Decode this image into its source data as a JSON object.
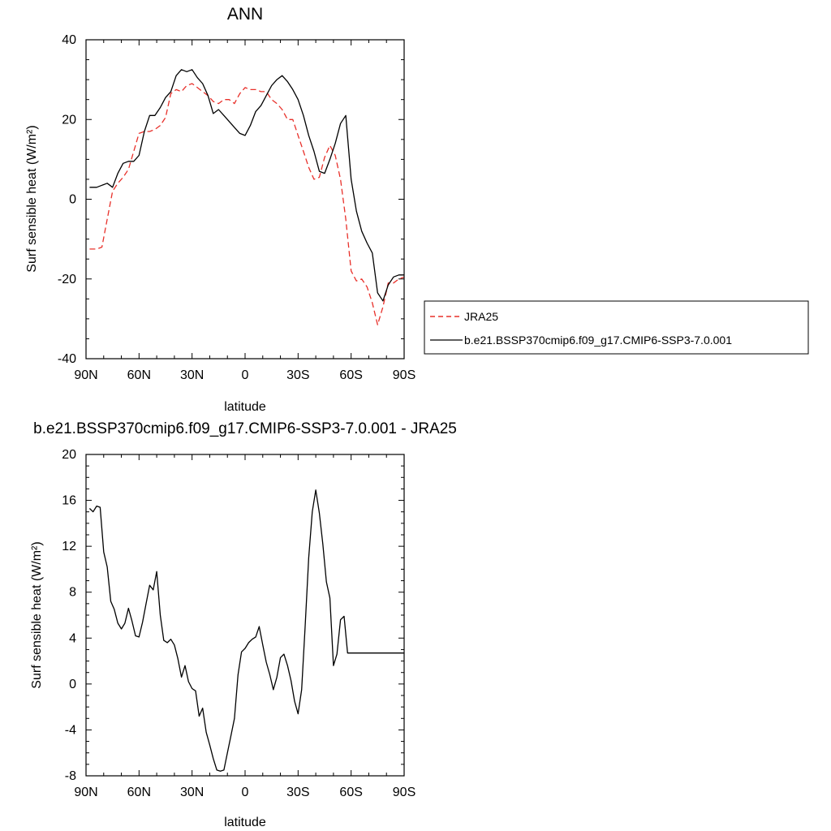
{
  "chart_data": [
    {
      "type": "line",
      "title": "ANN",
      "xlabel": "latitude",
      "ylabel": "Surf sensible heat (W/m²)",
      "xlim": [
        90,
        -90
      ],
      "ylim": [
        -40,
        40
      ],
      "x_ticks": [
        90,
        60,
        30,
        0,
        -30,
        -60,
        -90
      ],
      "x_tick_labels": [
        "90N",
        "60N",
        "30N",
        "0",
        "30S",
        "60S",
        "90S"
      ],
      "y_ticks": [
        -40,
        -20,
        0,
        20,
        40
      ],
      "y_tick_labels": [
        "-40",
        "-20",
        "0",
        "20",
        "40"
      ],
      "grid": false,
      "legend": "outside-right",
      "series": [
        {
          "name": "JRA25",
          "color": "#e8302a",
          "dash": "dashed",
          "x": [
            88,
            84,
            81,
            78,
            75,
            72,
            69,
            66,
            63,
            60,
            57,
            54,
            51,
            48,
            45,
            42,
            39,
            36,
            33,
            30,
            27,
            24,
            21,
            18,
            15,
            12,
            9,
            6,
            3,
            0,
            -3,
            -6,
            -9,
            -12,
            -15,
            -18,
            -21,
            -24,
            -27,
            -30,
            -33,
            -36,
            -39,
            -42,
            -45,
            -48,
            -51,
            -54,
            -57,
            -60,
            -63,
            -66,
            -69,
            -72,
            -75,
            -78,
            -81,
            -84,
            -87,
            -90
          ],
          "y": [
            -12.5,
            -12.5,
            -12.0,
            -5.0,
            2.0,
            4.0,
            5.5,
            7.5,
            12.0,
            16.5,
            17.0,
            17.0,
            17.5,
            18.5,
            20.5,
            26.5,
            27.5,
            27.0,
            28.5,
            29.0,
            28.0,
            27.0,
            26.0,
            24.5,
            24.0,
            25.0,
            25.0,
            24.0,
            26.5,
            28.0,
            27.5,
            27.5,
            27.0,
            27.0,
            25.0,
            24.0,
            22.5,
            20.0,
            20.0,
            16.0,
            12.0,
            8.0,
            5.0,
            5.5,
            10.5,
            13.5,
            11.0,
            5.0,
            -5.0,
            -18.0,
            -20.5,
            -20.0,
            -22.0,
            -26.0,
            -31.5,
            -27.0,
            -21.0,
            -21.0,
            -20.0,
            -19.5
          ]
        },
        {
          "name": "b.e21.BSSP370cmip6.f09_g17.CMIP6-SSP3-7.0.001",
          "color": "#000000",
          "dash": "solid",
          "x": [
            88,
            84,
            81,
            78,
            75,
            72,
            69,
            66,
            63,
            60,
            57,
            54,
            51,
            48,
            45,
            42,
            39,
            36,
            33,
            30,
            27,
            24,
            21,
            18,
            15,
            12,
            9,
            6,
            3,
            0,
            -3,
            -6,
            -9,
            -12,
            -15,
            -18,
            -21,
            -24,
            -27,
            -30,
            -33,
            -36,
            -39,
            -42,
            -45,
            -48,
            -51,
            -54,
            -57,
            -60,
            -63,
            -66,
            -69,
            -72,
            -75,
            -78,
            -81,
            -84,
            -87,
            -90
          ],
          "y": [
            3.0,
            3.0,
            3.5,
            4.0,
            3.0,
            6.5,
            9.0,
            9.5,
            9.5,
            11.0,
            17.0,
            21.0,
            21.0,
            23.0,
            25.5,
            27.0,
            31.0,
            32.5,
            32.0,
            32.5,
            30.5,
            29.0,
            26.0,
            21.5,
            22.5,
            21.0,
            19.5,
            18.0,
            16.5,
            16.0,
            18.5,
            22.0,
            23.5,
            26.0,
            28.5,
            30.0,
            31.0,
            29.5,
            27.5,
            25.0,
            21.0,
            16.0,
            12.0,
            7.0,
            6.5,
            10.0,
            14.0,
            19.0,
            21.0,
            5.0,
            -3.0,
            -8.0,
            -11.0,
            -13.5,
            -23.5,
            -25.5,
            -21.5,
            -19.5,
            -19.0,
            -19.0
          ]
        }
      ]
    },
    {
      "type": "line",
      "title": "b.e21.BSSP370cmip6.f09_g17.CMIP6-SSP3-7.0.001 - JRA25",
      "xlabel": "latitude",
      "ylabel": "Surf sensible heat (W/m²)",
      "xlim": [
        90,
        -90
      ],
      "ylim": [
        -8,
        20
      ],
      "x_ticks": [
        90,
        60,
        30,
        0,
        -30,
        -60,
        -90
      ],
      "x_tick_labels": [
        "90N",
        "60N",
        "30N",
        "0",
        "30S",
        "60S",
        "90S"
      ],
      "y_ticks": [
        -8,
        -4,
        0,
        4,
        8,
        12,
        16,
        20
      ],
      "y_tick_labels": [
        "-8",
        "-4",
        "0",
        "4",
        "8",
        "12",
        "16",
        "20"
      ],
      "grid": false,
      "legend": "none",
      "series": [
        {
          "color": "#000000",
          "dash": "solid",
          "x": [
            88,
            86,
            84,
            82,
            80,
            78,
            76,
            74,
            72,
            70,
            68,
            66,
            64,
            62,
            60,
            58,
            56,
            54,
            52,
            50,
            48,
            46,
            44,
            42,
            40,
            38,
            36,
            34,
            32,
            30,
            28,
            26,
            24,
            22,
            20,
            18,
            16,
            14,
            12,
            10,
            8,
            6,
            4,
            2,
            0,
            -2,
            -4,
            -6,
            -8,
            -10,
            -12,
            -14,
            -16,
            -18,
            -20,
            -22,
            -24,
            -26,
            -28,
            -30,
            -32,
            -34,
            -36,
            -38,
            -40,
            -42,
            -44,
            -46,
            -48,
            -50,
            -52,
            -54,
            -56,
            -58,
            -60,
            -62,
            -64,
            -66,
            -68,
            -70,
            -72,
            -74,
            -76,
            -78,
            -80,
            -82,
            -84,
            -86,
            -88,
            -90
          ],
          "y": [
            15.3,
            15.0,
            15.5,
            15.4,
            11.5,
            10.2,
            7.2,
            6.5,
            5.3,
            4.8,
            5.3,
            6.6,
            5.5,
            4.2,
            4.1,
            5.4,
            7.0,
            8.6,
            8.2,
            9.8,
            6.0,
            3.8,
            3.6,
            3.9,
            3.4,
            2.2,
            0.6,
            1.6,
            0.2,
            -0.4,
            -0.6,
            -2.8,
            -2.1,
            -4.2,
            -5.3,
            -6.5,
            -7.5,
            -7.6,
            -7.5,
            -6.0,
            -4.5,
            -3.0,
            0.8,
            2.8,
            3.1,
            3.6,
            3.9,
            4.1,
            5.0,
            3.4,
            1.9,
            0.8,
            -0.5,
            0.6,
            2.3,
            2.6,
            1.6,
            0.3,
            -1.5,
            -2.6,
            -0.5,
            5.0,
            11.0,
            15.0,
            16.9,
            14.9,
            12.2,
            8.9,
            7.5,
            1.6,
            2.6,
            5.6,
            5.9,
            2.7,
            2.7,
            2.7,
            2.7,
            2.7,
            2.7,
            2.7,
            2.7,
            2.7,
            2.7,
            2.7,
            2.7,
            2.7,
            2.7,
            2.7,
            2.7,
            2.7
          ]
        }
      ]
    }
  ]
}
